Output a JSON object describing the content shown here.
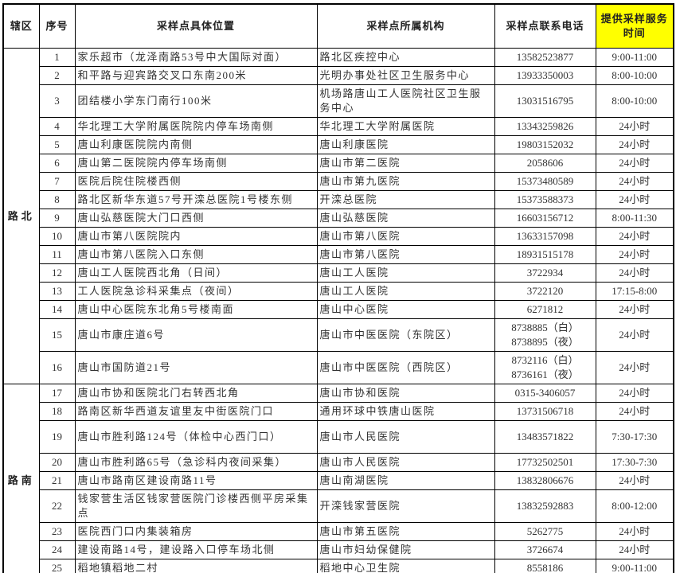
{
  "table": {
    "headers": {
      "district": "辖区",
      "number": "序号",
      "location": "采样点具体位置",
      "institution": "采样点所属机构",
      "phone": "采样点联系电话",
      "service_time": "提供采样服务时间"
    },
    "header_highlight_color": "#ffff00",
    "border_color": "#000000",
    "districts": [
      {
        "name": "路北",
        "rows": [
          {
            "num": "1",
            "location": "家乐超市（龙泽南路53号中大国际对面）",
            "org": "路北区疾控中心",
            "phone": "13582523877",
            "time": "9:00-11:00"
          },
          {
            "num": "2",
            "location": "和平路与迎宾路交叉口东南200米",
            "org": "光明办事处社区卫生服务中心",
            "phone": "13933350003",
            "time": "8:00-10:00"
          },
          {
            "num": "3",
            "location": "团结楼小学东门南行100米",
            "org": "机场路唐山工人医院社区卫生服务中心",
            "phone": "13031516795",
            "time": "8:00-10:00",
            "tall": true
          },
          {
            "num": "4",
            "location": "华北理工大学附属医院院内停车场南侧",
            "org": "华北理工大学附属医院",
            "phone": "13343259826",
            "time": "24小时"
          },
          {
            "num": "5",
            "location": "唐山利康医院院内南侧",
            "org": "唐山利康医院",
            "phone": "19803152032",
            "time": "24小时"
          },
          {
            "num": "6",
            "location": "唐山第二医院院内停车场南侧",
            "org": "唐山市第二医院",
            "phone": "2058606",
            "time": "24小时"
          },
          {
            "num": "7",
            "location": "医院后院住院楼西侧",
            "org": "唐山市第九医院",
            "phone": "15373480589",
            "time": "24小时"
          },
          {
            "num": "8",
            "location": "路北区新华东道57号开滦总医院1号楼东侧",
            "org": "开滦总医院",
            "phone": "15373588373",
            "time": "24小时"
          },
          {
            "num": "9",
            "location": "唐山弘慈医院大门口西侧",
            "org": "唐山弘慈医院",
            "phone": "16603156712",
            "time": "8:00-11:30"
          },
          {
            "num": "10",
            "location": "唐山市第八医院院内",
            "org": "唐山市第八医院",
            "phone": "13633157098",
            "time": "24小时"
          },
          {
            "num": "11",
            "location": "唐山市第八医院入口东侧",
            "org": "唐山市第八医院",
            "phone": "18931515178",
            "time": "24小时"
          },
          {
            "num": "12",
            "location": "唐山工人医院西北角（日间）",
            "org": "唐山工人医院",
            "phone": "3722934",
            "time": "24小时"
          },
          {
            "num": "13",
            "location": "工人医院急诊科采集点（夜间）",
            "org": "唐山工人医院",
            "phone": "3722120",
            "time": "17:15-8:00"
          },
          {
            "num": "14",
            "location": "唐山中心医院东北角5号楼南面",
            "org": "唐山中心医院",
            "phone": "6271812",
            "time": "24小时"
          },
          {
            "num": "15",
            "location": "唐山市康庄道6号",
            "org": "唐山市中医医院（东院区）",
            "phone": "8738885（白）\n8738895（夜）",
            "time": "24小时",
            "tall": true
          },
          {
            "num": "16",
            "location": "唐山市国防道21号",
            "org": "唐山市中医医院（西院区）",
            "phone": "8732116（白）\n8736161（夜）",
            "time": "24小时",
            "tall": true
          }
        ]
      },
      {
        "name": "路南",
        "rows": [
          {
            "num": "17",
            "location": "唐山市协和医院北门右转西北角",
            "org": "唐山市协和医院",
            "phone": "0315-3406057",
            "time": "24小时"
          },
          {
            "num": "18",
            "location": "路南区新华西道友谊里友中街医院门口",
            "org": "通用环球中铁唐山医院",
            "phone": "13731506718",
            "time": "24小时"
          },
          {
            "num": "19",
            "location": "唐山市胜利路124号（体检中心西门口）",
            "org": "唐山市人民医院",
            "phone": "13483571822",
            "time": "7:30-17:30",
            "tall": true
          },
          {
            "num": "20",
            "location": "唐山市胜利路65号（急诊科内夜间采集）",
            "org": "唐山市人民医院",
            "phone": "17732502501",
            "time": "17:30-7:30"
          },
          {
            "num": "21",
            "location": "唐山市路南区建设南路11号",
            "org": "唐山南湖医院",
            "phone": "13832806676",
            "time": "24小时"
          },
          {
            "num": "22",
            "location": "钱家营生活区钱家营医院门诊楼西侧平房采集点",
            "org": "开滦钱家营医院",
            "phone": "13832592883",
            "time": "8:00-12:00",
            "tall": true
          },
          {
            "num": "23",
            "location": "医院西门口内集装箱房",
            "org": "唐山市第五医院",
            "phone": "5262775",
            "time": "24小时"
          },
          {
            "num": "24",
            "location": "建设南路14号，建设路入口停车场北侧",
            "org": "唐山市妇幼保健院",
            "phone": "3726674",
            "time": "24小时"
          },
          {
            "num": "25",
            "location": "稻地镇稻地二村",
            "org": "稻地中心卫生院",
            "phone": "8558186",
            "time": "9:00-11:00"
          }
        ]
      }
    ]
  }
}
